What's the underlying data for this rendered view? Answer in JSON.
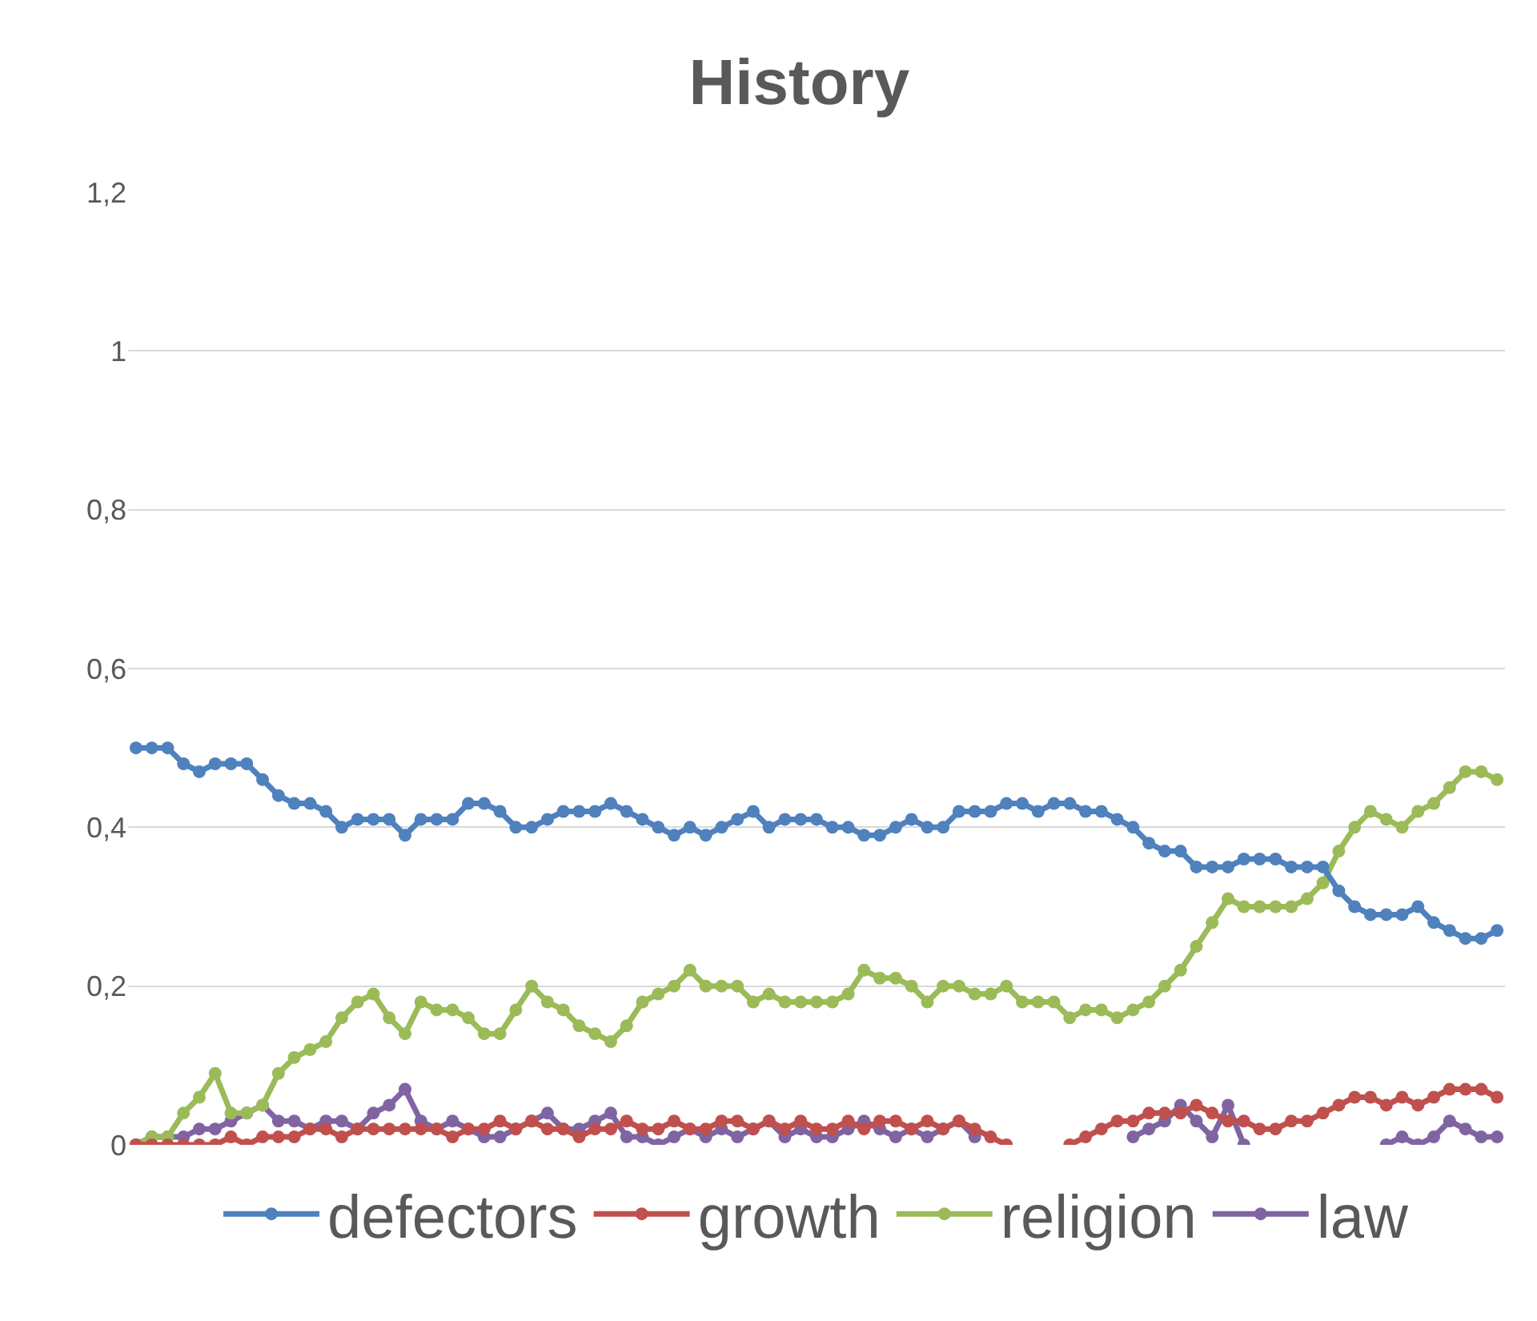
{
  "chart_data": {
    "type": "line",
    "title": "History",
    "categories": [
      null,
      null,
      null,
      null,
      null,
      null,
      null,
      null,
      null,
      null,
      null,
      null,
      null,
      null,
      null,
      null,
      null,
      null,
      null,
      null,
      null,
      null,
      null,
      null,
      null,
      null,
      null,
      null,
      null,
      null,
      null,
      null,
      null,
      null,
      null,
      null,
      null,
      null,
      null,
      null,
      null,
      null,
      null,
      null,
      null,
      null,
      null,
      null,
      null,
      null,
      null,
      null,
      null,
      null,
      null,
      null,
      null,
      null,
      null,
      null,
      null,
      null,
      null,
      null,
      null,
      null,
      null,
      null,
      null,
      null,
      null,
      null,
      null,
      null,
      null,
      null,
      null,
      null,
      null,
      null,
      null,
      null,
      null,
      null,
      null,
      null,
      null
    ],
    "series": [
      {
        "name": "defectors",
        "color": "#4f81bd",
        "values": [
          0.5,
          0.5,
          0.5,
          0.48,
          0.47,
          0.48,
          0.48,
          0.48,
          0.46,
          0.44,
          0.43,
          0.43,
          0.42,
          0.4,
          0.41,
          0.41,
          0.41,
          0.39,
          0.41,
          0.41,
          0.41,
          0.43,
          0.43,
          0.42,
          0.4,
          0.4,
          0.41,
          0.42,
          0.42,
          0.42,
          0.43,
          0.42,
          0.41,
          0.4,
          0.39,
          0.4,
          0.39,
          0.4,
          0.41,
          0.42,
          0.4,
          0.41,
          0.41,
          0.41,
          0.4,
          0.4,
          0.39,
          0.39,
          0.4,
          0.41,
          0.4,
          0.4,
          0.42,
          0.42,
          0.42,
          0.43,
          0.43,
          0.42,
          0.43,
          0.43,
          0.42,
          0.42,
          0.41,
          0.4,
          0.38,
          0.37,
          0.37,
          0.35,
          0.35,
          0.35,
          0.36,
          0.36,
          0.36,
          0.35,
          0.35,
          0.35,
          0.32,
          0.3,
          0.29,
          0.29,
          0.29,
          0.3,
          0.28,
          0.27,
          0.26,
          0.26,
          0.27
        ]
      },
      {
        "name": "growth",
        "color": "#c0504d",
        "values": [
          0,
          0,
          0,
          0,
          0,
          0,
          0.01,
          0,
          0.01,
          0.01,
          0.01,
          0.02,
          0.02,
          0.01,
          0.02,
          0.02,
          0.02,
          0.02,
          0.02,
          0.02,
          0.01,
          0.02,
          0.02,
          0.03,
          0.02,
          0.03,
          0.02,
          0.02,
          0.01,
          0.02,
          0.02,
          0.03,
          0.02,
          0.02,
          0.03,
          0.02,
          0.02,
          0.03,
          0.03,
          0.02,
          0.03,
          0.02,
          0.03,
          0.02,
          0.02,
          0.03,
          0.02,
          0.03,
          0.03,
          0.02,
          0.03,
          0.02,
          0.03,
          0.02,
          0.01,
          0.0,
          null,
          null,
          null,
          0.0,
          0.01,
          0.02,
          0.03,
          0.03,
          0.04,
          0.04,
          0.04,
          0.05,
          0.04,
          0.03,
          0.03,
          0.02,
          0.02,
          0.03,
          0.03,
          0.04,
          0.05,
          0.06,
          0.06,
          0.05,
          0.06,
          0.05,
          0.06,
          0.07,
          0.07,
          0.07,
          0.06
        ]
      },
      {
        "name": "religion",
        "color": "#9bbb59",
        "values": [
          0.0,
          0.01,
          0.01,
          0.04,
          0.06,
          0.09,
          0.04,
          0.04,
          0.05,
          0.09,
          0.11,
          0.12,
          0.13,
          0.16,
          0.18,
          0.19,
          0.16,
          0.14,
          0.18,
          0.17,
          0.17,
          0.16,
          0.14,
          0.14,
          0.17,
          0.2,
          0.18,
          0.17,
          0.15,
          0.14,
          0.13,
          0.15,
          0.18,
          0.19,
          0.2,
          0.22,
          0.2,
          0.2,
          0.2,
          0.18,
          0.19,
          0.18,
          0.18,
          0.18,
          0.18,
          0.19,
          0.22,
          0.21,
          0.21,
          0.2,
          0.18,
          0.2,
          0.2,
          0.19,
          0.19,
          0.2,
          0.18,
          0.18,
          0.18,
          0.16,
          0.17,
          0.17,
          0.16,
          0.17,
          0.18,
          0.2,
          0.22,
          0.25,
          0.28,
          0.31,
          0.3,
          0.3,
          0.3,
          0.3,
          0.31,
          0.33,
          0.37,
          0.4,
          0.42,
          0.41,
          0.4,
          0.42,
          0.43,
          0.45,
          0.47,
          0.47,
          0.46
        ]
      },
      {
        "name": "law",
        "color": "#8064a2",
        "values": [
          0.0,
          0.01,
          0.01,
          0.01,
          0.02,
          0.02,
          0.03,
          0.04,
          0.05,
          0.03,
          0.03,
          0.02,
          0.03,
          0.03,
          0.02,
          0.04,
          0.05,
          0.07,
          0.03,
          0.02,
          0.03,
          0.02,
          0.01,
          0.01,
          0.02,
          0.03,
          0.04,
          0.02,
          0.02,
          0.03,
          0.04,
          0.01,
          0.01,
          0.0,
          0.01,
          0.02,
          0.01,
          0.02,
          0.01,
          0.02,
          0.03,
          0.01,
          0.02,
          0.01,
          0.01,
          0.02,
          0.03,
          0.02,
          0.01,
          0.02,
          0.01,
          0.02,
          0.03,
          0.01,
          null,
          null,
          null,
          null,
          null,
          null,
          null,
          null,
          null,
          0.01,
          0.02,
          0.03,
          0.05,
          0.03,
          0.01,
          0.05,
          0.0,
          null,
          null,
          null,
          null,
          null,
          null,
          null,
          null,
          0.0,
          0.01,
          0.0,
          0.01,
          0.03,
          0.02,
          0.01,
          0.01
        ]
      }
    ],
    "ylim": [
      0,
      1.2
    ],
    "yticks": [
      0,
      {
        "value": 0.2,
        "label": "0,2"
      },
      {
        "value": 0.4,
        "label": "0,4"
      },
      {
        "value": 0.6,
        "label": "0,6"
      },
      {
        "value": 0.8,
        "label": "0,8"
      },
      1,
      {
        "value": 1.2,
        "label": "1,2"
      }
    ],
    "grid": "y",
    "legend": "bottom",
    "marker": "circle",
    "line_style": "solid"
  }
}
